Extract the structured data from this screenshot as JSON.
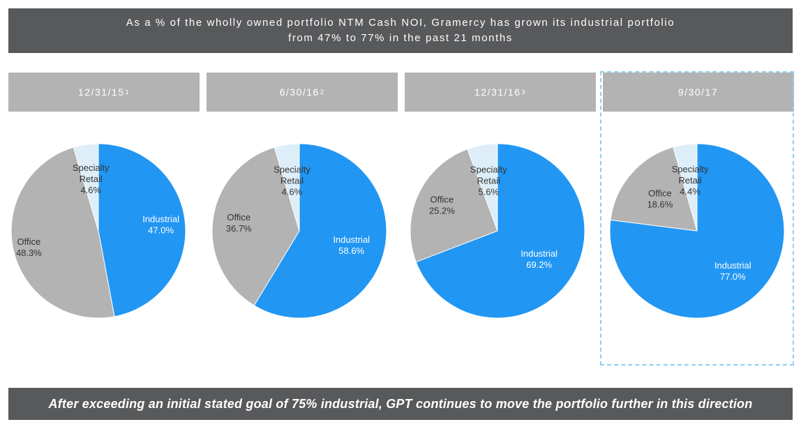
{
  "banner": {
    "line1": "As a % of the wholly owned portfolio NTM Cash NOI, Gramercy has grown its industrial portfolio",
    "line2": "from 47% to 77% in the past 21 months"
  },
  "footer": {
    "text": "After exceeding an initial stated goal of 75% industrial, GPT continues to move the portfolio further in this direction"
  },
  "colors": {
    "industrial": "#2196f3",
    "office": "#b3b3b3",
    "specialty_retail": "#ddeef9",
    "banner": "#58595b",
    "highlight_border": "#8ed0ee"
  },
  "chart_data": [
    {
      "type": "pie",
      "title": "12/31/15",
      "title_sup": "1",
      "slices": [
        {
          "label_lines": [
            "Industrial",
            "47.0%"
          ],
          "value": 47.0
        },
        {
          "label_lines": [
            "Office",
            "48.3%"
          ],
          "value": 48.3
        },
        {
          "label_lines": [
            "Specialty",
            "Retail",
            "4.6%"
          ],
          "value": 4.6
        }
      ]
    },
    {
      "type": "pie",
      "title": "6/30/16",
      "title_sup": "2",
      "slices": [
        {
          "label_lines": [
            "Industrial",
            "58.6%"
          ],
          "value": 58.6
        },
        {
          "label_lines": [
            "Office",
            "36.7%"
          ],
          "value": 36.7
        },
        {
          "label_lines": [
            "Specialty",
            "Retail",
            "4.6%"
          ],
          "value": 4.6
        }
      ]
    },
    {
      "type": "pie",
      "title": "12/31/16",
      "title_sup": "3",
      "slices": [
        {
          "label_lines": [
            "Industrial",
            "69.2%"
          ],
          "value": 69.2
        },
        {
          "label_lines": [
            "Office",
            "25.2%"
          ],
          "value": 25.2
        },
        {
          "label_lines": [
            "Specialty",
            "Retail",
            "5.6%"
          ],
          "value": 5.6
        }
      ]
    },
    {
      "type": "pie",
      "title": "9/30/17",
      "title_sup": "",
      "highlighted": true,
      "slices": [
        {
          "label_lines": [
            "Industrial",
            "77.0%"
          ],
          "value": 77.0
        },
        {
          "label_lines": [
            "Office",
            "18.6%"
          ],
          "value": 18.6
        },
        {
          "label_lines": [
            "Specialty",
            "Retail",
            "4.4%"
          ],
          "value": 4.4
        }
      ]
    }
  ]
}
